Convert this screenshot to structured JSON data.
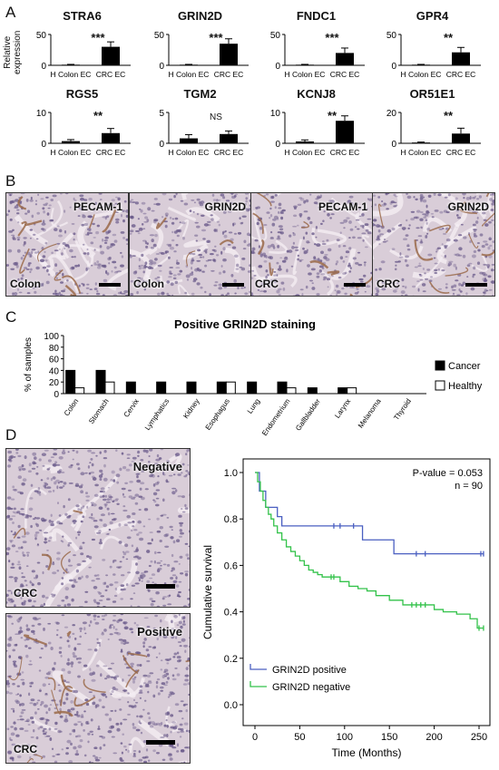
{
  "panels": {
    "a": "A",
    "b": "B",
    "c": "C",
    "d": "D"
  },
  "panel_a": {
    "ylabel_line1": "Relative",
    "ylabel_line2": "expression",
    "group_labels": [
      "H Colon EC",
      "CRC EC"
    ]
  },
  "panel_b": {
    "images": [
      {
        "stain": "PECAM-1",
        "tissue": "Colon"
      },
      {
        "stain": "GRIN2D",
        "tissue": "Colon"
      },
      {
        "stain": "PECAM-1",
        "tissue": "CRC"
      },
      {
        "stain": "GRIN2D",
        "tissue": "CRC"
      }
    ]
  },
  "panel_d_images": {
    "top": {
      "label": "Negative",
      "tissue": "CRC"
    },
    "bottom": {
      "label": "Positive",
      "tissue": "CRC"
    }
  },
  "colors": {
    "bar": "#000000",
    "positive_curve": "#4a5fc1",
    "negative_curve": "#33c24a",
    "tissue_bg": "#d9cdd8",
    "tissue_nuclei": "#6a5a8a",
    "tissue_vessel": "#9a6a4a"
  },
  "chart_data": [
    {
      "type": "bar",
      "title": "STRA6",
      "categories": [
        "H Colon EC",
        "CRC EC"
      ],
      "values": [
        1,
        30
      ],
      "errors": [
        0.5,
        8
      ],
      "ylim": [
        0,
        50
      ],
      "yticks": [
        0,
        50
      ],
      "significance": "***"
    },
    {
      "type": "bar",
      "title": "GRIN2D",
      "categories": [
        "H Colon EC",
        "CRC EC"
      ],
      "values": [
        1,
        35
      ],
      "errors": [
        0.5,
        8
      ],
      "ylim": [
        0,
        50
      ],
      "yticks": [
        0,
        50
      ],
      "significance": "***"
    },
    {
      "type": "bar",
      "title": "FNDC1",
      "categories": [
        "H Colon EC",
        "CRC EC"
      ],
      "values": [
        1,
        20
      ],
      "errors": [
        0.5,
        8
      ],
      "ylim": [
        0,
        50
      ],
      "yticks": [
        0,
        50
      ],
      "significance": "***"
    },
    {
      "type": "bar",
      "title": "GPR4",
      "categories": [
        "H Colon EC",
        "CRC EC"
      ],
      "values": [
        1,
        21
      ],
      "errors": [
        0.5,
        8
      ],
      "ylim": [
        0,
        50
      ],
      "yticks": [
        0,
        50
      ],
      "significance": "**"
    },
    {
      "type": "bar",
      "title": "RGS5",
      "categories": [
        "H Colon EC",
        "CRC EC"
      ],
      "values": [
        0.7,
        3.3
      ],
      "errors": [
        0.5,
        1.5
      ],
      "ylim": [
        0,
        10
      ],
      "yticks": [
        0,
        10
      ],
      "significance": "**"
    },
    {
      "type": "bar",
      "title": "TGM2",
      "categories": [
        "H Colon EC",
        "CRC EC"
      ],
      "values": [
        0.8,
        1.5
      ],
      "errors": [
        0.6,
        0.5
      ],
      "ylim": [
        0,
        5
      ],
      "yticks": [
        0,
        5
      ],
      "significance": "NS"
    },
    {
      "type": "bar",
      "title": "KCNJ8",
      "categories": [
        "H Colon EC",
        "CRC EC"
      ],
      "values": [
        0.6,
        7.3
      ],
      "errors": [
        0.5,
        1.6
      ],
      "ylim": [
        0,
        10
      ],
      "yticks": [
        0,
        10
      ],
      "significance": "**"
    },
    {
      "type": "bar",
      "title": "OR51E1",
      "categories": [
        "H Colon EC",
        "CRC EC"
      ],
      "values": [
        0.5,
        6.3
      ],
      "errors": [
        0.3,
        3.5
      ],
      "ylim": [
        0,
        20
      ],
      "yticks": [
        0,
        20
      ],
      "significance": "**"
    },
    {
      "type": "bar",
      "title": "Positive GRIN2D staining",
      "ylabel": "% of samples",
      "ylim": [
        0,
        100
      ],
      "yticks": [
        0,
        20,
        40,
        60,
        80,
        100
      ],
      "categories": [
        "Colon",
        "Stomach",
        "Cervix",
        "Lymphatics",
        "Kidney",
        "Esophagus",
        "Lung",
        "Endometrium",
        "Gallbladder",
        "Larynx",
        "Melanoma",
        "Thyroid"
      ],
      "series": [
        {
          "name": "Cancer",
          "values": [
            40,
            40,
            20,
            20,
            20,
            20,
            20,
            20,
            10,
            10,
            0,
            0
          ]
        },
        {
          "name": "Healthy",
          "values": [
            10,
            20,
            0,
            0,
            0,
            20,
            0,
            10,
            0,
            10,
            0,
            0
          ]
        }
      ],
      "legend": "right"
    },
    {
      "type": "line",
      "xlabel": "Time (Months)",
      "ylabel": "Cumulative survival",
      "xlim": [
        0,
        275
      ],
      "ylim": [
        0,
        1.0
      ],
      "xticks": [
        0,
        50,
        100,
        150,
        200,
        250
      ],
      "yticks": [
        0.0,
        0.2,
        0.4,
        0.6,
        0.8,
        1.0
      ],
      "annotation_p": "P-value = 0.053",
      "annotation_n": "n = 90",
      "legend": "bottom-left",
      "series": [
        {
          "name": "GRIN2D positive",
          "x": [
            0,
            5,
            5,
            12,
            12,
            25,
            25,
            30,
            30,
            40,
            40,
            120,
            120,
            155,
            155,
            255
          ],
          "y": [
            1.0,
            1.0,
            0.92,
            0.92,
            0.85,
            0.85,
            0.81,
            0.81,
            0.77,
            0.77,
            0.77,
            0.77,
            0.71,
            0.71,
            0.65,
            0.65
          ],
          "censored": [
            [
              88,
              0.77
            ],
            [
              95,
              0.77
            ],
            [
              110,
              0.77
            ],
            [
              180,
              0.65
            ],
            [
              190,
              0.65
            ],
            [
              252,
              0.65
            ],
            [
              255,
              0.65
            ]
          ]
        },
        {
          "name": "GRIN2D negative",
          "x": [
            0,
            3,
            6,
            9,
            12,
            15,
            18,
            21,
            25,
            30,
            35,
            40,
            45,
            50,
            55,
            60,
            65,
            70,
            75,
            80,
            85,
            95,
            105,
            115,
            125,
            135,
            150,
            165,
            175,
            190,
            200,
            210,
            225,
            240,
            248,
            255
          ],
          "y": [
            1.0,
            0.96,
            0.92,
            0.88,
            0.85,
            0.82,
            0.8,
            0.77,
            0.74,
            0.71,
            0.68,
            0.66,
            0.64,
            0.62,
            0.6,
            0.58,
            0.57,
            0.56,
            0.55,
            0.55,
            0.55,
            0.53,
            0.51,
            0.5,
            0.49,
            0.47,
            0.45,
            0.43,
            0.43,
            0.43,
            0.41,
            0.4,
            0.39,
            0.37,
            0.33,
            0.33
          ],
          "censored": [
            [
              85,
              0.55
            ],
            [
              88,
              0.55
            ],
            [
              175,
              0.43
            ],
            [
              180,
              0.43
            ],
            [
              185,
              0.43
            ],
            [
              190,
              0.43
            ],
            [
              250,
              0.33
            ],
            [
              255,
              0.33
            ]
          ]
        }
      ]
    }
  ]
}
